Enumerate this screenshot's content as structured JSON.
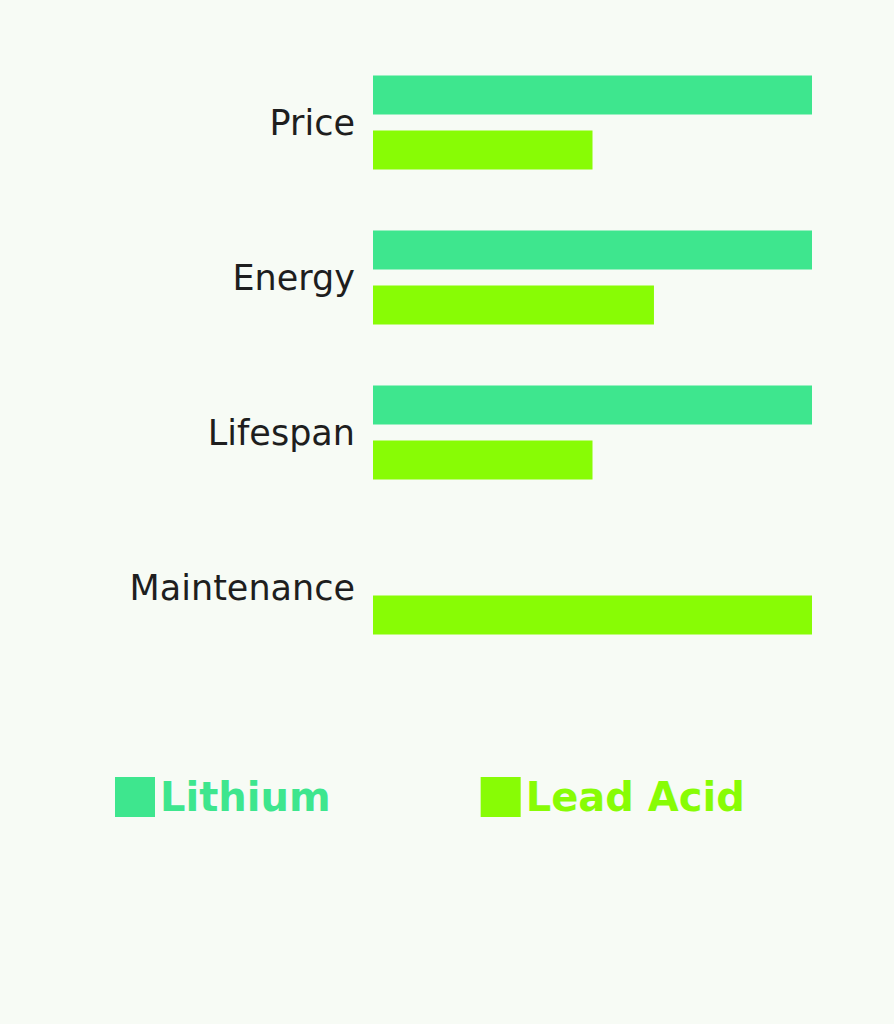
{
  "chart_data": {
    "type": "bar",
    "orientation": "horizontal",
    "categories": [
      "Price",
      "Energy",
      "Lifespan",
      "Maintenance"
    ],
    "series": [
      {
        "name": "Lithium",
        "color": "#3ee68e",
        "values": [
          100,
          100,
          100,
          0
        ]
      },
      {
        "name": "Lead Acid",
        "color": "#88fc05",
        "values": [
          50,
          64,
          50,
          100
        ]
      }
    ],
    "xlim": [
      0,
      100
    ],
    "tick_labels": "y",
    "grid": false,
    "legend": "bottom"
  }
}
